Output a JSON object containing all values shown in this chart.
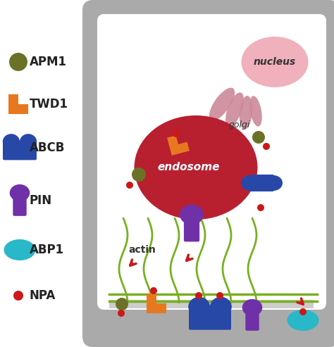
{
  "bg_color": "#ffffff",
  "cell_wall_color": "#aaaaaa",
  "cell_interior_color": "#f0f0f0",
  "endosome_color": "#b82030",
  "nucleus_color": "#f0b0bc",
  "golgi_color": "#cc8898",
  "actin_color": "#78b020",
  "apm1_color": "#6b7228",
  "twd1_color": "#e87820",
  "abcb_color": "#2848a8",
  "pin_color": "#7030a8",
  "abp1_color": "#28b8c8",
  "npa_color": "#cc1818",
  "text_endosome": "endosome",
  "text_nucleus": "nucleus",
  "text_golgi": "golgi",
  "text_actin": "actin",
  "legend_fontsize": 12
}
